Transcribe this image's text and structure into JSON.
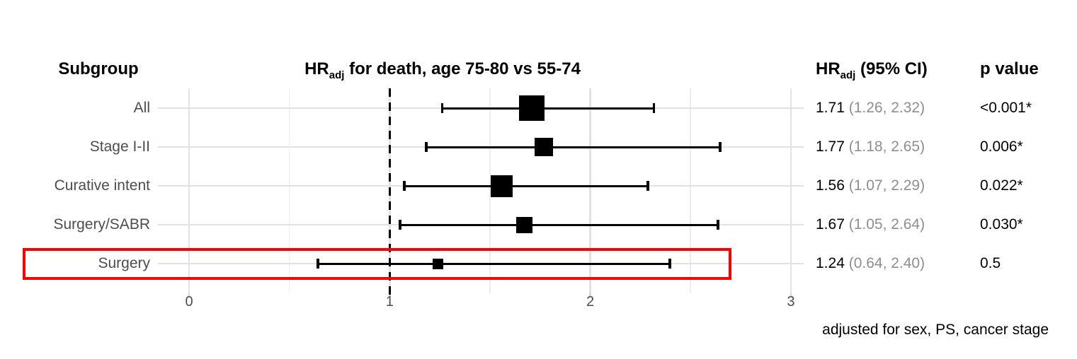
{
  "header": {
    "subgroup_label": "Subgroup",
    "title": {
      "prefix": "HR",
      "sub": "adj",
      "rest": " for death, age 75-80 vs 55-74"
    },
    "hr_col": {
      "prefix": "HR",
      "sub": "adj",
      "rest": " (95% CI)"
    },
    "p_col": "p value"
  },
  "footer": {
    "note": "adjusted for sex, PS, cancer stage"
  },
  "colors": {
    "highlight_red": "#f80000",
    "marker_black": "#000000",
    "label_gray": "#4d4d4d",
    "ci_text_gray": "#8e8e8e",
    "grid_major": "#e2e2e2",
    "grid_minor": "#ededed"
  },
  "chart_data": {
    "type": "forest",
    "title": "HRadj for death, age 75-80 vs 55-74",
    "xlabel": "",
    "ylabel": "Subgroup",
    "x_axis": {
      "ticks": [
        0,
        1,
        2,
        3
      ],
      "minor_ticks": [
        0.5,
        1.5,
        2.5
      ],
      "range_shown": [
        -0.15,
        3.15
      ],
      "reference_line": 1,
      "grid": true
    },
    "legend": null,
    "rows": [
      {
        "label": "All",
        "hr": 1.71,
        "ci_low": 1.26,
        "ci_high": 2.32,
        "hr_text": "1.71",
        "ci_text": "(1.26, 2.32)",
        "p_text": "<0.001*",
        "marker_size": 36,
        "highlighted": false
      },
      {
        "label": "Stage I-II",
        "hr": 1.77,
        "ci_low": 1.18,
        "ci_high": 2.65,
        "hr_text": "1.77",
        "ci_text": "(1.18, 2.65)",
        "p_text": "0.006*",
        "marker_size": 26,
        "highlighted": false
      },
      {
        "label": "Curative intent",
        "hr": 1.56,
        "ci_low": 1.07,
        "ci_high": 2.29,
        "hr_text": "1.56",
        "ci_text": "(1.07, 2.29)",
        "p_text": "0.022*",
        "marker_size": 31,
        "highlighted": false
      },
      {
        "label": "Surgery/SABR",
        "hr": 1.67,
        "ci_low": 1.05,
        "ci_high": 2.64,
        "hr_text": "1.67",
        "ci_text": "(1.05, 2.64)",
        "p_text": "0.030*",
        "marker_size": 23,
        "highlighted": false
      },
      {
        "label": "Surgery",
        "hr": 1.24,
        "ci_low": 0.64,
        "ci_high": 2.4,
        "hr_text": "1.24",
        "ci_text": "(0.64, 2.40)",
        "p_text": "0.5",
        "marker_size": 15,
        "highlighted": true
      }
    ]
  }
}
